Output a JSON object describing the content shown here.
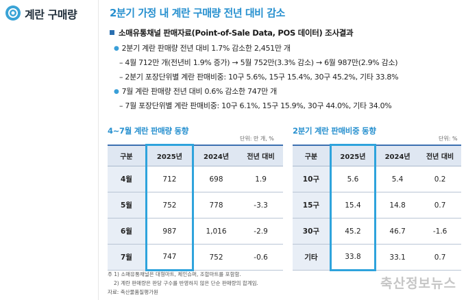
{
  "sidebar": {
    "title": "계란 구매량"
  },
  "main_title": "2분기 가정 내 계란 구매량 전년 대비 감소",
  "section_header": "소매유통채널 판매자료(Point-of-Sale Data, POS 데이터) 조사결과",
  "body_lines": [
    "2분기 계란 판매량 전년 대비 1.7% 감소한 2,451만 개",
    "– 4월 712만 개(전년비 1.9% 증가) → 5월 752만(3.3% 감소) → 6월 987만(2.9% 감소)",
    "– 2분기 포장단위별 계란 판매비중: 10구 5.6%, 15구 15.4%, 30구 45.2%, 기타 33.8%",
    "7월 계란 판매량 전년 대비 0.6% 감소한 747만 개",
    "– 7월 포장단위별 계란 판매비중: 10구 6.1%, 15구 15.9%, 30구 44.0%, 기타 34.0%"
  ],
  "table1": {
    "title": "4~7월 계란 판매량 동향",
    "unit": "단위: 만 개, %",
    "headers": [
      "구분",
      "2025년",
      "2024년",
      "전년 대비"
    ],
    "rows": [
      [
        "4월",
        "712",
        "698",
        "1.9"
      ],
      [
        "5월",
        "752",
        "778",
        "-3.3"
      ],
      [
        "6월",
        "987",
        "1,016",
        "-2.9"
      ],
      [
        "7월",
        "747",
        "752",
        "-0.6"
      ]
    ]
  },
  "table2": {
    "title": "2분기 계란 판매비중 동향",
    "unit": "단위: %",
    "headers": [
      "구분",
      "2025년",
      "2024년",
      "전년 대비"
    ],
    "rows": [
      [
        "10구",
        "5.6",
        "5.4",
        "0.2"
      ],
      [
        "15구",
        "15.4",
        "14.8",
        "0.7"
      ],
      [
        "30구",
        "45.2",
        "46.7",
        "-1.6"
      ],
      [
        "기타",
        "33.8",
        "33.1",
        "0.7"
      ]
    ]
  },
  "notes": [
    "주 1) 소매유통채널은 대형마트, 체인슈퍼, 조합마트를 포함함.",
    "2) 계란 판매량은 판당 구수를 반영하지 않은 단순 판매량의 합계임.",
    "자료: 축산물품질평가원"
  ],
  "watermark": "축산정보뉴스",
  "colors": {
    "accent": "#2790cf",
    "highlight": "#2ea3dc",
    "header_bg": "#dfe7f2"
  }
}
